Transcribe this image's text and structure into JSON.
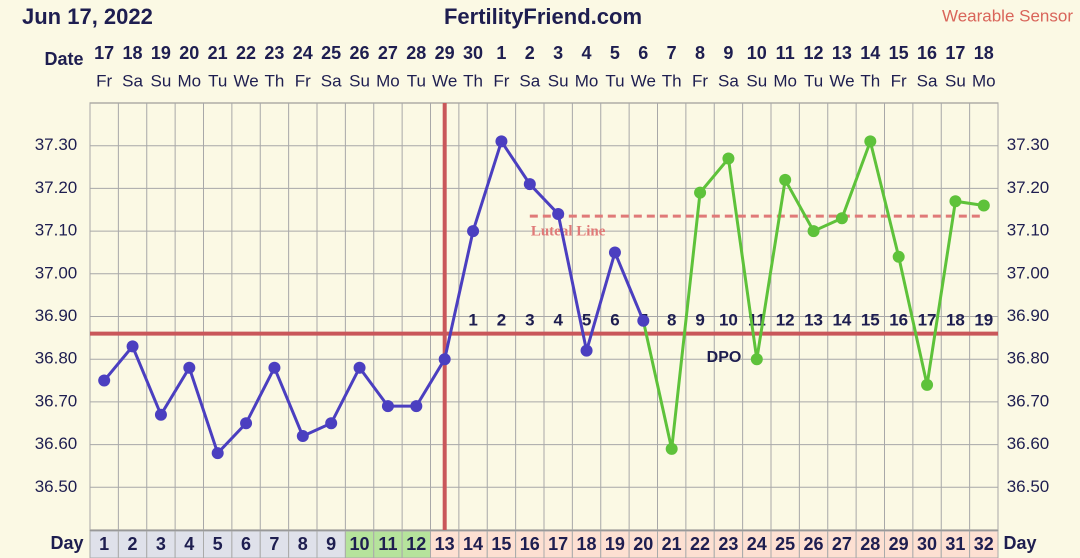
{
  "header": {
    "date": "Jun 17, 2022",
    "site": "FertilityFriend.com",
    "mode": "Wearable Sensor"
  },
  "chart_data": {
    "type": "line",
    "date_label": "Date",
    "day_label": "Day",
    "dates": [
      17,
      18,
      19,
      20,
      21,
      22,
      23,
      24,
      25,
      26,
      27,
      28,
      29,
      30,
      1,
      2,
      3,
      4,
      5,
      6,
      7,
      8,
      9,
      10,
      11,
      12,
      13,
      14,
      15,
      16,
      17,
      18
    ],
    "weekdays": [
      "Fr",
      "Sa",
      "Su",
      "Mo",
      "Tu",
      "We",
      "Th",
      "Fr",
      "Sa",
      "Su",
      "Mo",
      "Tu",
      "We",
      "Th",
      "Fr",
      "Sa",
      "Su",
      "Mo",
      "Tu",
      "We",
      "Th",
      "Fr",
      "Sa",
      "Su",
      "Mo",
      "Tu",
      "We",
      "Th",
      "Fr",
      "Sa",
      "Su",
      "Mo"
    ],
    "days": [
      1,
      2,
      3,
      4,
      5,
      6,
      7,
      8,
      9,
      10,
      11,
      12,
      13,
      14,
      15,
      16,
      17,
      18,
      19,
      20,
      21,
      22,
      23,
      24,
      25,
      26,
      27,
      28,
      29,
      30,
      31,
      32
    ],
    "day_cell_colors": [
      "#dfe1ea",
      "#dfe1ea",
      "#dfe1ea",
      "#dfe1ea",
      "#dfe1ea",
      "#dfe1ea",
      "#dfe1ea",
      "#dfe1ea",
      "#dfe1ea",
      "#b6e39c",
      "#b6e39c",
      "#b6e39c",
      "#fde0d2",
      "#fde0d2",
      "#fde0d2",
      "#fde0d2",
      "#fde0d2",
      "#fde0d2",
      "#fde0d2",
      "#fde0d2",
      "#fde0d2",
      "#fde0d2",
      "#fde0d2",
      "#fde0d2",
      "#fde0d2",
      "#fde0d2",
      "#fde0d2",
      "#fde0d2",
      "#fde0d2",
      "#fde0d2",
      "#fde0d2",
      "#fde0d2"
    ],
    "series": [
      {
        "color": "#4b3fc0",
        "values": [
          36.75,
          36.83,
          36.67,
          36.78,
          36.58,
          36.65,
          36.78,
          36.62,
          36.65,
          36.78,
          36.69,
          36.69,
          36.8,
          37.1,
          37.31,
          37.21,
          37.14,
          36.82,
          37.05,
          36.89,
          null,
          null,
          null,
          null,
          null,
          null,
          null,
          null,
          null,
          null,
          null,
          null
        ]
      },
      {
        "color": "#5ec23a",
        "values": [
          null,
          null,
          null,
          null,
          null,
          null,
          null,
          null,
          null,
          null,
          null,
          null,
          null,
          null,
          null,
          null,
          null,
          null,
          null,
          36.89,
          36.59,
          37.19,
          37.27,
          36.8,
          37.22,
          37.1,
          37.13,
          37.31,
          37.04,
          36.74,
          37.17,
          37.16
        ]
      }
    ],
    "ylim": [
      36.4,
      37.4
    ],
    "yticks": [
      {
        "value": 36.5,
        "label": "36.50"
      },
      {
        "value": 36.6,
        "label": "36.60"
      },
      {
        "value": 36.7,
        "label": "36.70"
      },
      {
        "value": 36.8,
        "label": "36.80"
      },
      {
        "value": 36.9,
        "label": "36.90"
      },
      {
        "value": 37.0,
        "label": "37.00"
      },
      {
        "value": 37.1,
        "label": "37.10"
      },
      {
        "value": 37.2,
        "label": "37.20"
      },
      {
        "value": 37.3,
        "label": "37.30"
      }
    ],
    "grid": true,
    "coverline": 36.86,
    "coverline_color": "#c9575a",
    "ovulation_day": 13,
    "luteal_line": {
      "value": 37.135,
      "start_day": 16,
      "label": "Luteal Line",
      "color": "#e07a78"
    },
    "dpo": {
      "label": "DPO",
      "values": [
        1,
        2,
        3,
        4,
        5,
        6,
        7,
        8,
        9,
        10,
        11,
        12,
        13,
        14,
        15,
        16,
        17,
        18,
        19
      ]
    }
  }
}
